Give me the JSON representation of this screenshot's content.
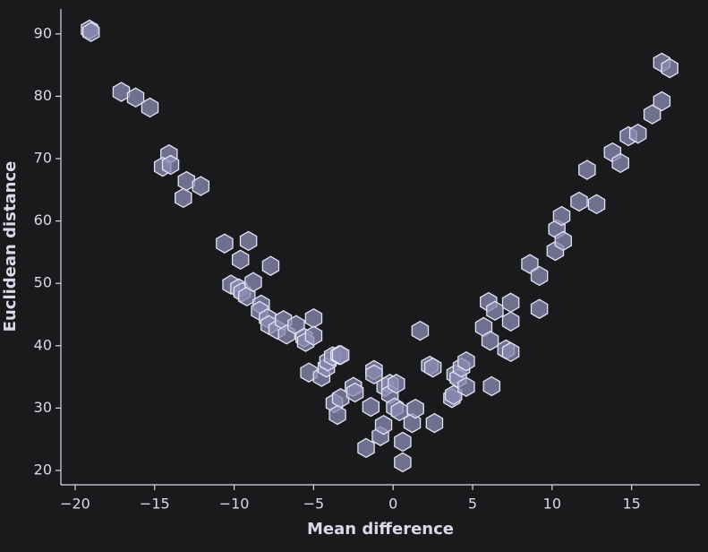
{
  "chart_data": {
    "type": "scatter",
    "x_label": "Mean difference",
    "y_label": "Euclidean distance",
    "color": "#8c8cb4",
    "edge_color": "#e4e4f8",
    "xlim": [
      -20.9,
      19.3
    ],
    "ylim": [
      17.7,
      94
    ],
    "xticks": [
      {
        "value": -20,
        "label": "−20"
      },
      {
        "value": -15,
        "label": "−15"
      },
      {
        "value": -10,
        "label": "−10"
      },
      {
        "value": -5,
        "label": "−5"
      },
      0,
      5,
      10,
      15
    ],
    "yticks": [
      20,
      30,
      40,
      50,
      60,
      70,
      80,
      90
    ],
    "x": [
      -19.1,
      -19.0,
      -17.1,
      -16.2,
      -15.3,
      -14.1,
      -14.5,
      -14.0,
      -13.0,
      -12.1,
      -13.2,
      -10.6,
      -9.1,
      -9.6,
      -7.7,
      -10.2,
      -9.7,
      -9.5,
      -9.2,
      -8.8,
      -8.3,
      -8.4,
      -7.9,
      -7.8,
      -7.3,
      -6.9,
      -6.7,
      -6.1,
      -5.6,
      -5.5,
      -5.0,
      -5.0,
      -5.3,
      -4.5,
      -4.2,
      -4.1,
      -3.8,
      -3.4,
      -3.3,
      -3.7,
      -3.3,
      -3.5,
      -2.5,
      -2.4,
      -1.4,
      -1.7,
      -1.2,
      -1.2,
      -0.8,
      -0.6,
      -0.5,
      -0.2,
      -0.2,
      0.2,
      0.1,
      0.4,
      0.6,
      0.6,
      1.2,
      1.4,
      1.7,
      2.3,
      2.5,
      2.6,
      3.7,
      3.8,
      3.9,
      4.1,
      4.3,
      4.6,
      4.6,
      5.7,
      6.0,
      6.1,
      6.4,
      6.2,
      7.1,
      7.4,
      7.4,
      7.4,
      8.6,
      9.2,
      9.2,
      10.2,
      10.3,
      10.6,
      10.7,
      11.7,
      12.2,
      12.8,
      13.8,
      14.3,
      14.8,
      15.4,
      16.3,
      16.9,
      16.9,
      17.4
    ],
    "y": [
      90.7,
      90.3,
      80.7,
      79.8,
      78.2,
      70.7,
      68.7,
      69.0,
      66.4,
      65.6,
      63.7,
      56.4,
      56.8,
      53.8,
      52.8,
      49.8,
      49.2,
      48.6,
      47.9,
      50.2,
      46.6,
      45.6,
      44.4,
      43.3,
      42.6,
      44.1,
      41.8,
      43.3,
      41.3,
      40.6,
      44.4,
      41.6,
      35.7,
      35.0,
      36.5,
      37.5,
      38.3,
      38.5,
      38.5,
      30.8,
      31.6,
      28.9,
      33.4,
      32.5,
      30.2,
      23.6,
      36.1,
      35.4,
      25.5,
      27.3,
      33.4,
      33.9,
      32.2,
      33.9,
      30.1,
      29.5,
      24.6,
      21.3,
      27.6,
      29.9,
      42.4,
      36.8,
      36.5,
      27.6,
      31.6,
      32.1,
      35.4,
      34.8,
      36.5,
      37.5,
      33.4,
      43.0,
      47.0,
      40.8,
      45.6,
      33.5,
      39.4,
      39.0,
      46.9,
      43.9,
      53.1,
      51.2,
      45.9,
      55.2,
      58.7,
      60.8,
      56.8,
      63.1,
      68.2,
      62.7,
      71.0,
      69.3,
      73.6,
      74.0,
      77.1,
      79.2,
      85.4,
      84.5
    ]
  }
}
